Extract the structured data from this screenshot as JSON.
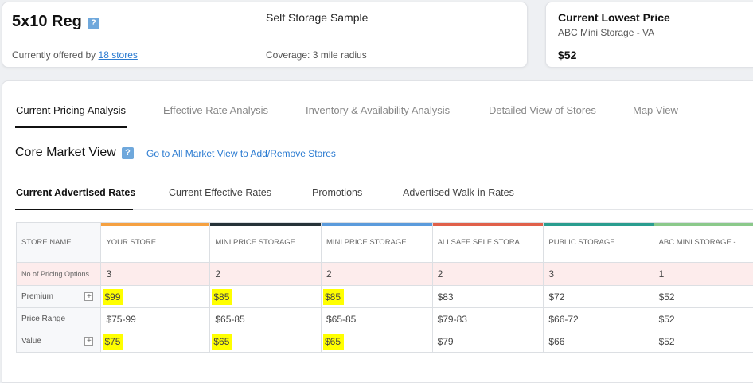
{
  "unit": {
    "title": "5x10 Reg",
    "offered_prefix": "Currently offered by",
    "offered_link": "18 stores",
    "sample_title": "Self Storage Sample",
    "coverage": "Coverage: 3 mile radius"
  },
  "lowest": {
    "title": "Current Lowest Price",
    "store": "ABC Mini Storage - VA",
    "price": "$52"
  },
  "tabs": [
    {
      "label": "Current Pricing Analysis",
      "active": true
    },
    {
      "label": "Effective Rate Analysis"
    },
    {
      "label": "Inventory & Availability Analysis"
    },
    {
      "label": "Detailed View of Stores"
    },
    {
      "label": "Map View"
    }
  ],
  "core": {
    "title": "Core Market View",
    "link": "Go to All Market View to Add/Remove Stores"
  },
  "subtabs": [
    {
      "label": "Current Advertised Rates",
      "active": true
    },
    {
      "label": "Current Effective Rates"
    },
    {
      "label": "Promotions"
    },
    {
      "label": "Advertised Walk-in Rates"
    }
  ],
  "table": {
    "store_name_header": "STORE NAME",
    "columns": [
      {
        "name": "YOUR STORE",
        "color": "#f5a142"
      },
      {
        "name": "MINI PRICE STORAGE..",
        "color": "#263238"
      },
      {
        "name": "MINI PRICE STORAGE..",
        "color": "#5b9bdc"
      },
      {
        "name": "ALLSAFE SELF STORA..",
        "color": "#e0604a"
      },
      {
        "name": "PUBLIC STORAGE",
        "color": "#2a9d8f"
      },
      {
        "name": "ABC MINI STORAGE -..",
        "color": "#8bc98b"
      }
    ],
    "pricing_options_label": "No.of Pricing Options",
    "pricing_options": [
      "3",
      "2",
      "2",
      "2",
      "3",
      "1"
    ],
    "rows": [
      {
        "label": "Premium",
        "values": [
          "$99",
          "$85",
          "$85",
          "$83",
          "$72",
          "$52"
        ],
        "highlight": [
          true,
          true,
          true,
          false,
          false,
          false
        ]
      },
      {
        "label": "Price Range",
        "values": [
          "$75-99",
          "$65-85",
          "$65-85",
          "$79-83",
          "$66-72",
          "$52"
        ],
        "highlight": [
          false,
          false,
          false,
          false,
          false,
          false
        ]
      },
      {
        "label": "Value",
        "values": [
          "$75",
          "$65",
          "$65",
          "$79",
          "$66",
          "$52"
        ],
        "highlight": [
          true,
          true,
          true,
          false,
          false,
          false
        ]
      }
    ],
    "expand_icon": "+"
  }
}
